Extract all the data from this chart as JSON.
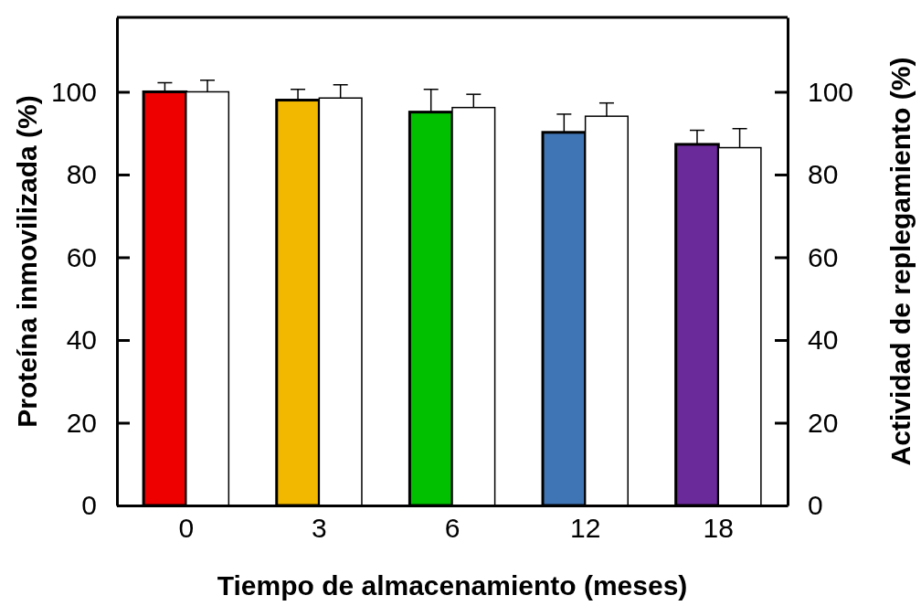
{
  "chart_data": {
    "type": "bar",
    "xlabel": "Tiempo de almacenamiento (meses)",
    "ylabel": "Proteína inmovilizada (%)",
    "y2label": "Actividad de replegamiento (%)",
    "categories": [
      "0",
      "3",
      "6",
      "12",
      "18"
    ],
    "series": [
      {
        "colors": [
          "#ee0000",
          "#f2b800",
          "#00c000",
          "#3f74b5",
          "#6a2a9a"
        ],
        "values": [
          100,
          98.0,
          95.1,
          90.2,
          87.3
        ],
        "errors": [
          [
            100,
            102.2
          ],
          [
            98.0,
            100.6
          ],
          [
            95.1,
            100.6
          ],
          [
            90.2,
            94.6
          ],
          [
            87.3,
            90.7
          ]
        ]
      },
      {
        "color": "#ffffff",
        "axis": "y2",
        "values": [
          100,
          98.5,
          96.2,
          94.1,
          86.5
        ],
        "errors": [
          [
            100,
            102.8
          ],
          [
            98.5,
            101.7
          ],
          [
            96.2,
            99.4
          ],
          [
            94.1,
            97.3
          ],
          [
            86.5,
            91.1
          ]
        ]
      }
    ],
    "ylim": [
      0,
      118
    ],
    "yticks": [
      0,
      20,
      40,
      60,
      80,
      100
    ],
    "y2lim": [
      0,
      118
    ],
    "y2ticks": [
      0,
      20,
      40,
      60,
      80,
      100
    ],
    "grid": false
  }
}
